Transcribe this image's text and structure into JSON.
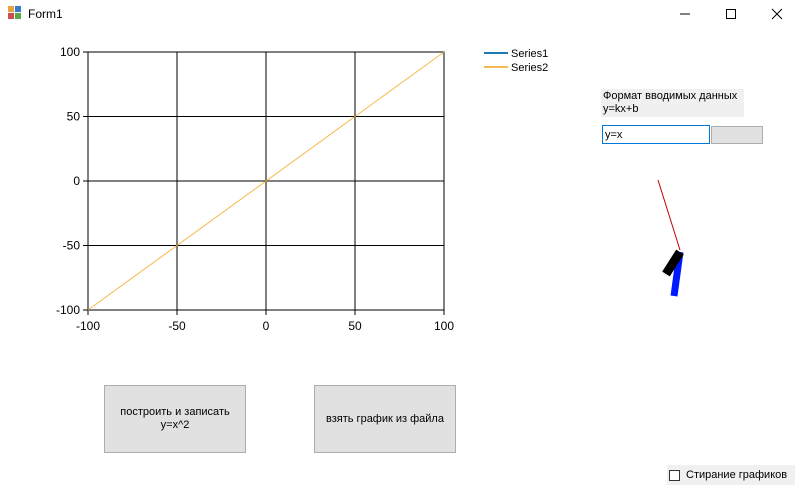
{
  "window": {
    "title": "Form1"
  },
  "chart_data": {
    "type": "line",
    "x_ticks": [
      "-100",
      "-50",
      "0",
      "50",
      "100"
    ],
    "y_ticks": [
      "100",
      "50",
      "0",
      "-50",
      "-100"
    ],
    "xlim": [
      -100,
      100
    ],
    "ylim": [
      -100,
      100
    ],
    "grid": true,
    "legend_position": "top-right",
    "series": [
      {
        "name": "Series1",
        "color": "#1f77b4",
        "x": [],
        "y": []
      },
      {
        "name": "Series2",
        "color": "#f4b94f",
        "x": [
          -100,
          100
        ],
        "y": [
          -100,
          100
        ]
      }
    ]
  },
  "format_panel": {
    "label_line1": "Формат вводимых данных",
    "label_line2": "y=kx+b",
    "input_value": "y=x"
  },
  "buttons": {
    "plot_save": "построить и записать\ny=x^2",
    "load_file": "взять график из файла"
  },
  "erase_checkbox": {
    "label": "Стирание графиков",
    "checked": false
  }
}
